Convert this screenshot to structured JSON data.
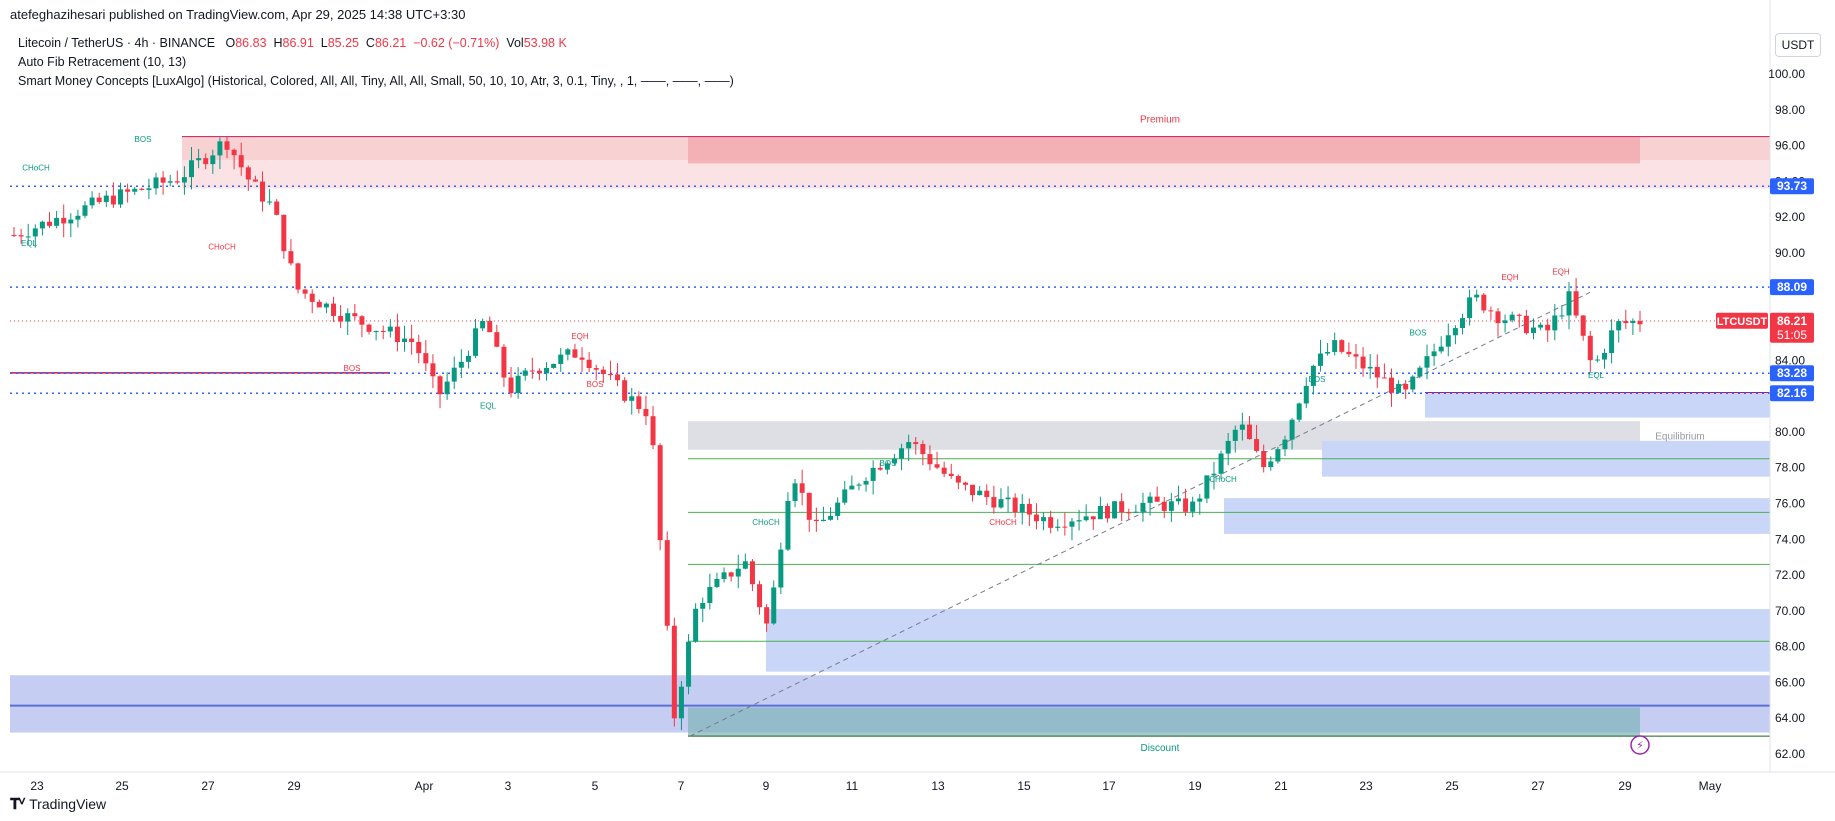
{
  "header": {
    "published_line": "atefeghazihesari published on TradingView.com, Apr 29, 2025 14:38 UTC+3:30"
  },
  "legend": {
    "symbol": "Litecoin / TetherUS · 4h · BINANCE",
    "o_label": "O",
    "o_value": "86.83",
    "h_label": "H",
    "h_value": "86.91",
    "l_label": "L",
    "l_value": "85.25",
    "c_label": "C",
    "c_value": "86.21",
    "change": "−0.62 (−0.71%)",
    "vol_label": "Vol",
    "vol_value": "53.98 K",
    "indicator1": "Auto Fib Retracement (10, 13)",
    "indicator2": "Smart Money Concepts [LuxAlgo] (Historical, Colored, All, All, Tiny, All, All, Small, 50, 10, 10, Atr, 3, 0.1, Tiny, , 1, ——, ——, ——)"
  },
  "unit": "USDT",
  "footer": {
    "brand": "TradingView"
  },
  "colors": {
    "up": "#089981",
    "down": "#f23645",
    "blue": "#2962ff",
    "premium_fill": "#f6c9cc",
    "discount_fill": "#b3c6f5",
    "equilibrium_fill": "#d1d4dc"
  },
  "chart_data": {
    "type": "candlestick",
    "title": "Litecoin / TetherUS · 4h · BINANCE",
    "ylim": [
      62,
      101
    ],
    "y_ticks": [
      "100.00",
      "98.00",
      "96.00",
      "94.00",
      "92.00",
      "90.00",
      "88.00",
      "86.00",
      "84.00",
      "82.00",
      "80.00",
      "78.00",
      "76.00",
      "74.00",
      "72.00",
      "70.00",
      "68.00",
      "66.00",
      "64.00",
      "62.00"
    ],
    "x_ticks": [
      "23",
      "25",
      "27",
      "29",
      "Apr",
      "3",
      "5",
      "7",
      "9",
      "11",
      "13",
      "15",
      "17",
      "19",
      "21",
      "23",
      "25",
      "27",
      "29",
      "May"
    ],
    "price_labels": [
      {
        "text": "93.73",
        "value": 93.73,
        "kind": "blue"
      },
      {
        "text": "88.09",
        "value": 88.09,
        "kind": "blue"
      },
      {
        "text": "86.21",
        "value": 86.21,
        "kind": "red",
        "symbol": "LTCUSDT",
        "countdown": "51:05"
      },
      {
        "text": "83.28",
        "value": 83.28,
        "kind": "blue"
      },
      {
        "text": "82.16",
        "value": 82.16,
        "kind": "blue"
      }
    ],
    "zone_labels": {
      "premium": "Premium",
      "equilibrium": "Equilibrium",
      "discount": "Discount"
    },
    "structure_labels": [
      "CHoCH",
      "BOS",
      "EQL",
      "CHoCH",
      "BOS",
      "EQL",
      "EQH",
      "BOS",
      "CHoCH",
      "BOS",
      "CHoCH",
      "CHoCH",
      "BOS",
      "BOS",
      "EQH",
      "EQH",
      "EQL"
    ],
    "series": [
      {
        "name": "LTCUSDT close (approx. swing path)",
        "points": [
          [
            0,
            91.0
          ],
          [
            4,
            93.0
          ],
          [
            7,
            94.2
          ],
          [
            9,
            96.3
          ],
          [
            10,
            94.0
          ],
          [
            11,
            92.5
          ],
          [
            12,
            88.0
          ],
          [
            14,
            86.5
          ],
          [
            17,
            85.0
          ],
          [
            18,
            82.0
          ],
          [
            19,
            84.0
          ],
          [
            20,
            86.3
          ],
          [
            21,
            82.3
          ],
          [
            22,
            83.5
          ],
          [
            24,
            84.5
          ],
          [
            26,
            82.0
          ],
          [
            27,
            81.0
          ],
          [
            28,
            64.0
          ],
          [
            29,
            70.5
          ],
          [
            31,
            72.8
          ],
          [
            32,
            69.0
          ],
          [
            33,
            78.0
          ],
          [
            34,
            74.5
          ],
          [
            36,
            77.5
          ],
          [
            38,
            79.5
          ],
          [
            40,
            77.0
          ],
          [
            42,
            76.0
          ],
          [
            44,
            75.0
          ],
          [
            46,
            75.5
          ],
          [
            48,
            76.0
          ],
          [
            50,
            75.8
          ],
          [
            51,
            78.0
          ],
          [
            52,
            80.5
          ],
          [
            53,
            78.0
          ],
          [
            54,
            80.0
          ],
          [
            55,
            83.5
          ],
          [
            56,
            84.8
          ],
          [
            58,
            83.0
          ],
          [
            59,
            82.0
          ],
          [
            60,
            84.0
          ],
          [
            61,
            86.0
          ],
          [
            62,
            87.5
          ],
          [
            63,
            86.5
          ],
          [
            64,
            86.0
          ],
          [
            65,
            85.5
          ],
          [
            66,
            87.5
          ],
          [
            67,
            83.5
          ],
          [
            68,
            86.0
          ],
          [
            69,
            86.2
          ]
        ]
      }
    ]
  }
}
